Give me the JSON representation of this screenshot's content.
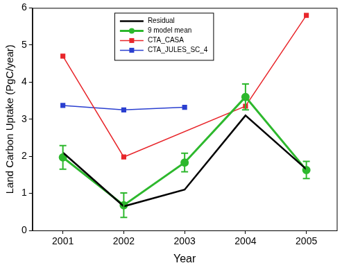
{
  "chart_data": {
    "type": "line",
    "x_label": "Year",
    "y_label": "Land Carbon Uptake (PgC/year)",
    "categories": [
      "2001",
      "2002",
      "2003",
      "2004",
      "2005"
    ],
    "series": [
      {
        "name": "Residual",
        "color": "#000000",
        "marker": "none",
        "values": [
          2.1,
          0.65,
          1.1,
          3.1,
          1.65
        ]
      },
      {
        "name": "9 model mean",
        "color": "#2db82d",
        "marker": "circle",
        "values": [
          1.97,
          0.68,
          1.83,
          3.6,
          1.63
        ],
        "errors": [
          0.32,
          0.33,
          0.25,
          0.35,
          0.23
        ]
      },
      {
        "name": "CTA_CASA",
        "color": "#e8262b",
        "marker": "square",
        "values": [
          4.7,
          1.98,
          null,
          3.35,
          5.8
        ]
      },
      {
        "name": "CTA_JULES_SC_4",
        "color": "#2a3fd0",
        "marker": "square",
        "values": [
          3.37,
          3.25,
          3.32,
          null,
          null
        ]
      }
    ],
    "ylim": [
      0,
      6
    ],
    "yticks": [
      0,
      1,
      2,
      3,
      4,
      5,
      6
    ],
    "grid": false,
    "legend": "upper center"
  }
}
